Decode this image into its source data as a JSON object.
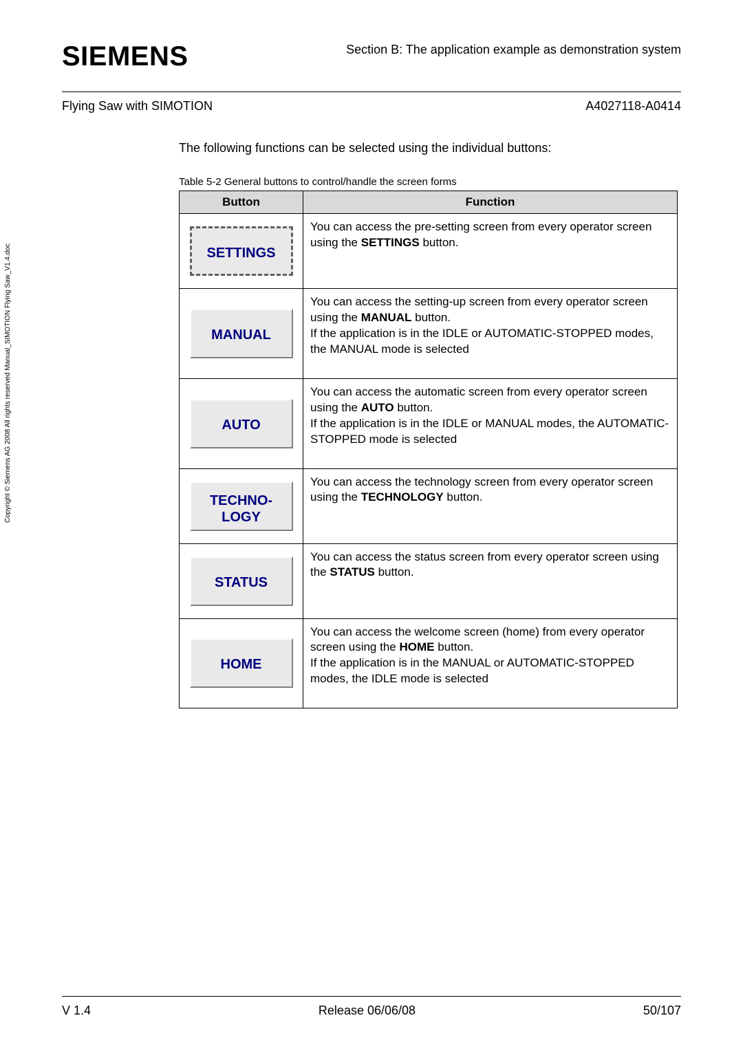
{
  "header": {
    "logo": "SIEMENS",
    "section": "Section B:  The application example as demonstration system",
    "left": "Flying Saw with SIMOTION",
    "right": "A4027118-A0414"
  },
  "intro": "The following functions can be selected using the individual buttons:",
  "caption": "Table 5-2  General buttons to control/handle the screen forms",
  "table": {
    "head_button": "Button",
    "head_function": "Function",
    "rows": [
      {
        "btn": "SETTINGS",
        "fn_pre": "You can access the pre-setting screen from every operator screen using the ",
        "fn_bold": "SETTINGS",
        "fn_post": " button."
      },
      {
        "btn": "MANUAL",
        "fn_pre": "You can access the setting-up screen from every operator screen using the ",
        "fn_bold": "MANUAL",
        "fn_post": " button.",
        "fn_extra": "If the application is in the IDLE or AUTOMATIC-STOPPED modes, the MANUAL mode is selected"
      },
      {
        "btn": "AUTO",
        "fn_pre": "You can access the automatic screen from every operator screen using the ",
        "fn_bold": "AUTO",
        "fn_post": " button.",
        "fn_extra": "If the application is in the IDLE or MANUAL modes, the AUTOMATIC-STOPPED mode is selected"
      },
      {
        "btn1": "TECHNO-",
        "btn2": "LOGY",
        "fn_pre": "You can access the technology screen from every operator screen using the ",
        "fn_bold": "TECHNOLOGY",
        "fn_post": " button."
      },
      {
        "btn": "STATUS",
        "fn_pre": "You can access the status screen from every operator screen using the ",
        "fn_bold": "STATUS",
        "fn_post": " button."
      },
      {
        "btn": "HOME",
        "fn_pre": "You can access the welcome screen (home) from every operator screen using the ",
        "fn_bold": "HOME",
        "fn_post": " button.",
        "fn_extra": "If the application is in the MANUAL or AUTOMATIC-STOPPED modes, the IDLE mode is selected"
      }
    ]
  },
  "side": "Copyright © Siemens AG 2008 All rights reserved\nManual_SIMOTION Flying Saw_V1.4.doc",
  "footer": {
    "left": "V 1.4",
    "center": "Release 06/06/08",
    "right": "50/107"
  }
}
